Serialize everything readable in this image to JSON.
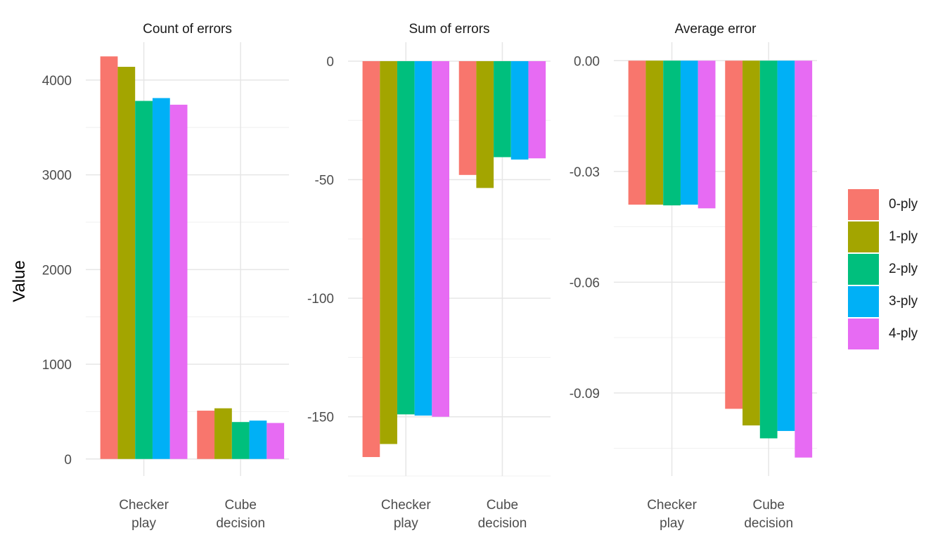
{
  "y_axis_title": "Value",
  "legend": {
    "items": [
      {
        "label": "0-ply",
        "color": "#F8766D"
      },
      {
        "label": "1-ply",
        "color": "#A3A500"
      },
      {
        "label": "2-ply",
        "color": "#00BF7D"
      },
      {
        "label": "3-ply",
        "color": "#00B0F6"
      },
      {
        "label": "4-ply",
        "color": "#E76BF3"
      }
    ]
  },
  "chart_data": [
    {
      "type": "bar",
      "title": "Count of errors",
      "categories": [
        "Checker\nplay",
        "Cube\ndecision"
      ],
      "ylim": [
        -180,
        4400
      ],
      "yticks": [
        0,
        1000,
        2000,
        3000,
        4000
      ],
      "tick_labels": [
        "0",
        "1000",
        "2000",
        "3000",
        "4000"
      ],
      "series": [
        {
          "name": "0-ply",
          "values": [
            4250,
            510
          ]
        },
        {
          "name": "1-ply",
          "values": [
            4140,
            535
          ]
        },
        {
          "name": "2-ply",
          "values": [
            3780,
            390
          ]
        },
        {
          "name": "3-ply",
          "values": [
            3810,
            405
          ]
        },
        {
          "name": "4-ply",
          "values": [
            3740,
            380
          ]
        }
      ]
    },
    {
      "type": "bar",
      "title": "Sum of errors",
      "categories": [
        "Checker\nplay",
        "Cube\ndecision"
      ],
      "ylim": [
        -175,
        8
      ],
      "yticks": [
        0,
        -50,
        -100,
        -150
      ],
      "tick_labels": [
        "0",
        "-50",
        "-100",
        "-150"
      ],
      "series": [
        {
          "name": "0-ply",
          "values": [
            -167,
            -48
          ]
        },
        {
          "name": "1-ply",
          "values": [
            -161.5,
            -53.5
          ]
        },
        {
          "name": "2-ply",
          "values": [
            -149,
            -40.5
          ]
        },
        {
          "name": "3-ply",
          "values": [
            -149.5,
            -41.5
          ]
        },
        {
          "name": "4-ply",
          "values": [
            -150,
            -41
          ]
        }
      ]
    },
    {
      "type": "bar",
      "title": "Average error",
      "categories": [
        "Checker\nplay",
        "Cube\ndecision"
      ],
      "ylim": [
        -0.1125,
        0.005
      ],
      "yticks": [
        0,
        -0.03,
        -0.06,
        -0.09
      ],
      "tick_labels": [
        "0.00",
        "-0.03",
        "-0.06",
        "-0.09"
      ],
      "series": [
        {
          "name": "0-ply",
          "values": [
            -0.039,
            -0.0943
          ]
        },
        {
          "name": "1-ply",
          "values": [
            -0.039,
            -0.0988
          ]
        },
        {
          "name": "2-ply",
          "values": [
            -0.0392,
            -0.1023
          ]
        },
        {
          "name": "3-ply",
          "values": [
            -0.039,
            -0.1003
          ]
        },
        {
          "name": "4-ply",
          "values": [
            -0.04,
            -0.1075
          ]
        }
      ]
    }
  ]
}
